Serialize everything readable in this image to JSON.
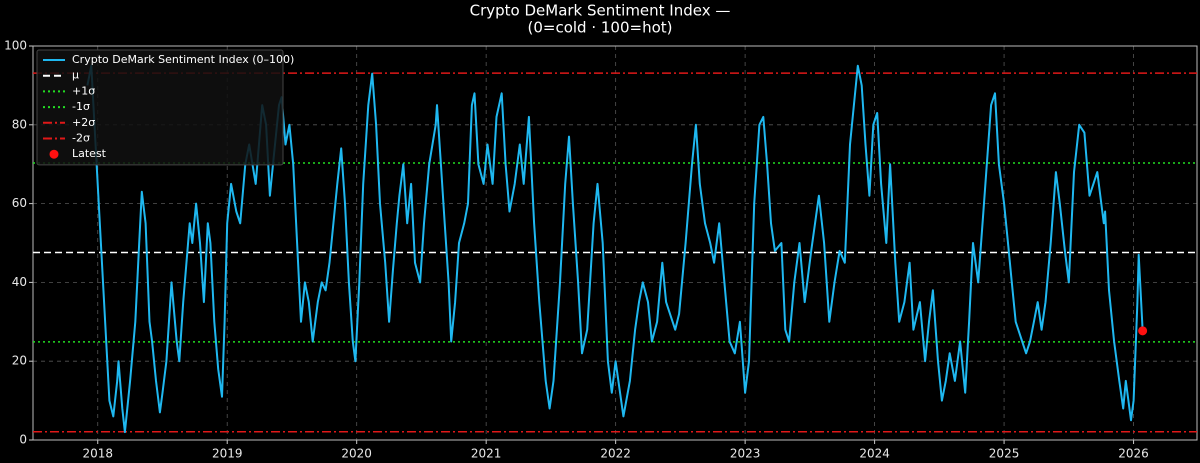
{
  "chart_data": {
    "type": "line",
    "title": [
      "Crypto DeMark Sentiment Index —",
      "(0=cold · 100=hot)"
    ],
    "xlim": [
      2017.5,
      2026.49
    ],
    "xticks": [
      2018,
      2019,
      2020,
      2021,
      2022,
      2023,
      2024,
      2025,
      2026
    ],
    "ylim": [
      0,
      100
    ],
    "yticks": [
      0,
      20,
      40,
      60,
      80,
      100
    ],
    "grid": true,
    "legend": "upper-left",
    "x": [
      2017.92,
      2017.95,
      2018.09,
      2018.12,
      2018.15,
      2018.16,
      2018.19,
      2018.21,
      2018.25,
      2018.29,
      2018.32,
      2018.34,
      2018.37,
      2018.4,
      2018.42,
      2018.45,
      2018.48,
      2018.5,
      2018.53,
      2018.57,
      2018.61,
      2018.63,
      2018.66,
      2018.71,
      2018.73,
      2018.76,
      2018.79,
      2018.82,
      2018.85,
      2018.87,
      2018.9,
      2018.93,
      2018.96,
      2018.98,
      2019.0,
      2019.03,
      2019.07,
      2019.1,
      2019.14,
      2019.17,
      2019.22,
      2019.27,
      2019.3,
      2019.33,
      2019.36,
      2019.4,
      2019.42,
      2019.45,
      2019.48,
      2019.51,
      2019.54,
      2019.57,
      2019.6,
      2019.63,
      2019.66,
      2019.7,
      2019.73,
      2019.76,
      2019.79,
      2019.82,
      2019.85,
      2019.88,
      2019.91,
      2019.94,
      2019.97,
      2019.99,
      2020.02,
      2020.05,
      2020.09,
      2020.12,
      2020.15,
      2020.18,
      2020.22,
      2020.25,
      2020.28,
      2020.31,
      2020.33,
      2020.36,
      2020.39,
      2020.42,
      2020.45,
      2020.49,
      2020.52,
      2020.56,
      2020.61,
      2020.62,
      2020.65,
      2020.68,
      2020.71,
      2020.73,
      2020.76,
      2020.79,
      2020.83,
      2020.86,
      2020.89,
      2020.91,
      2020.94,
      2020.98,
      2021.01,
      2021.05,
      2021.08,
      2021.12,
      2021.15,
      2021.18,
      2021.22,
      2021.26,
      2021.29,
      2021.33,
      2021.37,
      2021.41,
      2021.46,
      2021.49,
      2021.52,
      2021.57,
      2021.61,
      2021.64,
      2021.67,
      2021.71,
      2021.74,
      2021.78,
      2021.83,
      2021.86,
      2021.9,
      2021.94,
      2021.97,
      2022.0,
      2022.06,
      2022.11,
      2022.15,
      2022.18,
      2022.21,
      2022.25,
      2022.28,
      2022.32,
      2022.36,
      2022.39,
      2022.46,
      2022.49,
      2022.54,
      2022.59,
      2022.62,
      2022.65,
      2022.69,
      2022.73,
      2022.76,
      2022.8,
      2022.84,
      2022.88,
      2022.92,
      2022.96,
      2023.0,
      2023.03,
      2023.07,
      2023.11,
      2023.14,
      2023.17,
      2023.2,
      2023.23,
      2023.28,
      2023.31,
      2023.34,
      2023.38,
      2023.42,
      2023.46,
      2023.51,
      2023.57,
      2023.61,
      2023.65,
      2023.69,
      2023.73,
      2023.77,
      2023.81,
      2023.87,
      2023.9,
      2023.93,
      2023.96,
      2023.99,
      2024.02,
      2024.05,
      2024.09,
      2024.12,
      2024.16,
      2024.19,
      2024.23,
      2024.27,
      2024.3,
      2024.35,
      2024.39,
      2024.42,
      2024.45,
      2024.49,
      2024.52,
      2024.55,
      2024.58,
      2024.62,
      2024.66,
      2024.7,
      2024.73,
      2024.76,
      2024.8,
      2024.84,
      2024.9,
      2024.93,
      2024.96,
      2025.0,
      2025.03,
      2025.06,
      2025.09,
      2025.14,
      2025.17,
      2025.2,
      2025.23,
      2025.26,
      2025.29,
      2025.32,
      2025.36,
      2025.4,
      2025.43,
      2025.47,
      2025.5,
      2025.54,
      2025.58,
      2025.62,
      2025.66,
      2025.69,
      2025.72,
      2025.77,
      2025.78,
      2025.81,
      2025.85,
      2025.89,
      2025.92,
      2025.94,
      2025.98,
      2026.0,
      2026.03,
      2026.04,
      2026.07
    ],
    "series": [
      {
        "name": "Crypto DeMark Sentiment Index (0–100)",
        "color": "#1fb8f0",
        "values": [
          90,
          95,
          10,
          6,
          15,
          20,
          8,
          2,
          15,
          30,
          50,
          63,
          55,
          30,
          25,
          15,
          7,
          12,
          20,
          40,
          25,
          20,
          35,
          55,
          50,
          60,
          50,
          35,
          55,
          50,
          30,
          18,
          11,
          30,
          55,
          65,
          58,
          55,
          70,
          75,
          65,
          85,
          80,
          62,
          72,
          85,
          87,
          75,
          80,
          70,
          50,
          30,
          40,
          35,
          25,
          35,
          40,
          38,
          45,
          55,
          65,
          74,
          60,
          40,
          25,
          20,
          40,
          65,
          85,
          93,
          80,
          60,
          45,
          30,
          43,
          55,
          62,
          70,
          55,
          65,
          45,
          40,
          55,
          70,
          80,
          85,
          70,
          55,
          40,
          25,
          35,
          50,
          55,
          60,
          85,
          88,
          70,
          65,
          75,
          65,
          82,
          88,
          70,
          58,
          65,
          75,
          65,
          82,
          55,
          35,
          15,
          8,
          15,
          40,
          65,
          77,
          60,
          40,
          22,
          28,
          55,
          65,
          50,
          20,
          12,
          20,
          6,
          15,
          28,
          35,
          40,
          35,
          25,
          30,
          45,
          35,
          28,
          32,
          50,
          70,
          80,
          65,
          55,
          50,
          45,
          55,
          40,
          25,
          22,
          30,
          12,
          20,
          60,
          80,
          82,
          70,
          55,
          48,
          50,
          28,
          25,
          40,
          50,
          35,
          48,
          62,
          50,
          30,
          40,
          48,
          45,
          75,
          95,
          90,
          75,
          62,
          80,
          83,
          65,
          50,
          70,
          45,
          30,
          35,
          45,
          28,
          35,
          20,
          30,
          38,
          20,
          10,
          15,
          22,
          15,
          25,
          12,
          30,
          50,
          40,
          58,
          85,
          88,
          70,
          60,
          50,
          40,
          30,
          25,
          22,
          25,
          30,
          35,
          28,
          35,
          50,
          68,
          60,
          48,
          40,
          68,
          80,
          78,
          62,
          65,
          68,
          55,
          58,
          38,
          25,
          15,
          8,
          15,
          5,
          10,
          35,
          47,
          28
        ]
      }
    ],
    "hlines": [
      {
        "name": "μ",
        "value": 47.6,
        "color": "#ffffff",
        "style": "dashed"
      },
      {
        "name": "+1σ",
        "value": 70.3,
        "color": "#22dd22",
        "style": "dotted"
      },
      {
        "name": "-1σ",
        "value": 24.9,
        "color": "#22dd22",
        "style": "dotted"
      },
      {
        "name": "+2σ",
        "value": 93.1,
        "color": "#e01818",
        "style": "dashdot"
      },
      {
        "name": "-2σ",
        "value": 2.1,
        "color": "#e01818",
        "style": "dashdot"
      }
    ],
    "latest": {
      "name": "Latest",
      "x": 2026.07,
      "value": 27.7,
      "color": "#ff1010"
    }
  }
}
